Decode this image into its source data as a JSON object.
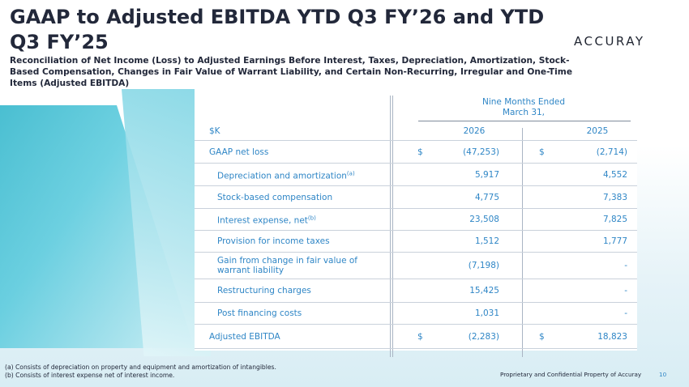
{
  "slide": {
    "title": "GAAP to Adjusted EBITDA YTD Q3 FY’26 and YTD Q3 FY’25",
    "subtitle": "Reconciliation of Net Income (Loss) to Adjusted Earnings Before Interest, Taxes, Depreciation, Amortization, Stock-Based Compensation, Changes in Fair Value of Warrant Liability, and Certain Non-Recurring, Irregular and One-Time Items (Adjusted EBITDA)",
    "logo_text": "ACCURAY"
  },
  "table": {
    "unit_label": "$K",
    "period_header_line1": "Nine Months Ended",
    "period_header_line2": "March 31,",
    "year1": "2026",
    "year2": "2025",
    "rows": [
      {
        "label": "GAAP net loss",
        "sup": "",
        "cur1": "$",
        "val1": "(47,253)",
        "cur2": "$",
        "val2": "(2,714)"
      },
      {
        "label": "Depreciation and amortization",
        "sup": "(a)",
        "cur1": "",
        "val1": "5,917",
        "cur2": "",
        "val2": "4,552"
      },
      {
        "label": "Stock-based compensation",
        "sup": "",
        "cur1": "",
        "val1": "4,775",
        "cur2": "",
        "val2": "7,383"
      },
      {
        "label": "Interest expense, net",
        "sup": "(b)",
        "cur1": "",
        "val1": "23,508",
        "cur2": "",
        "val2": "7,825"
      },
      {
        "label": "Provision for income taxes",
        "sup": "",
        "cur1": "",
        "val1": "1,512",
        "cur2": "",
        "val2": "1,777"
      },
      {
        "label": "Gain from change in fair value of warrant liability",
        "sup": "",
        "cur1": "",
        "val1": "(7,198)",
        "cur2": "",
        "val2": "-"
      },
      {
        "label": "Restructuring charges",
        "sup": "",
        "cur1": "",
        "val1": "15,425",
        "cur2": "",
        "val2": "-"
      },
      {
        "label": "Post financing costs",
        "sup": "",
        "cur1": "",
        "val1": "1,031",
        "cur2": "",
        "val2": "-"
      },
      {
        "label": "Adjusted EBITDA",
        "sup": "",
        "cur1": "$",
        "val1": "(2,283)",
        "cur2": "$",
        "val2": "18,823"
      }
    ]
  },
  "footnotes": {
    "a": "(a) Consists of depreciation on property and equipment and amortization of intangibles.",
    "b": "(b) Consists of interest expense net of interest income."
  },
  "footer": {
    "text": "Proprietary and Confidential Property of Accuray",
    "page_number": "10"
  }
}
